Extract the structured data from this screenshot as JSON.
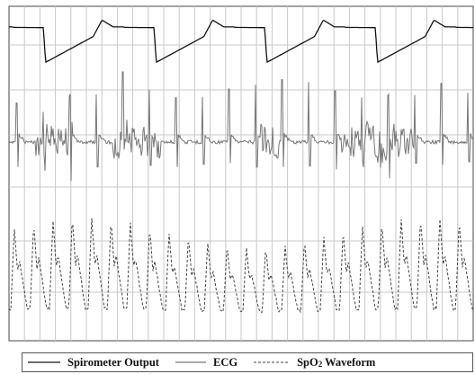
{
  "chart_data": {
    "type": "line",
    "title": "",
    "xlabel": "",
    "ylabel": "",
    "grid": true,
    "legend_position": "bottom",
    "series": [
      {
        "name": "Spirometer Output",
        "color": "#111111",
        "style": "solid",
        "breaths": 4,
        "breath_period_s": 1.0,
        "range_norm": [
          0.05,
          0.92
        ]
      },
      {
        "name": "ECG",
        "color": "#777777",
        "style": "solid",
        "beats": 18,
        "beat_period_s": 0.235,
        "range_norm": [
          0.05,
          0.97
        ]
      },
      {
        "name": "SpO2 Waveform",
        "color": "#444444",
        "style": "dashed",
        "pulses": 20,
        "pulse_period_s": 0.21,
        "range_norm": [
          0.05,
          0.95
        ]
      }
    ],
    "legend": {
      "spirometer": "Spirometer Output",
      "ecg": "ECG",
      "spo2_prefix": "SpO",
      "spo2_sub": "2",
      "spo2_suffix": " Waveform"
    }
  }
}
